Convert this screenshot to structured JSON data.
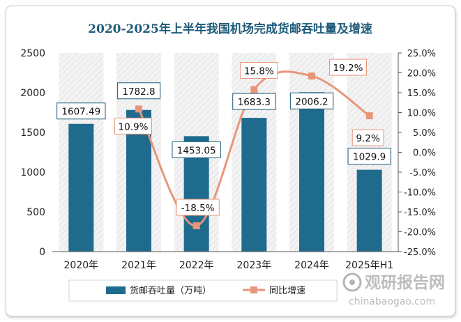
{
  "chart_data": {
    "type": "bar+line",
    "title": "2020-2025年上半年我国机场完成货邮吞吐量及增速",
    "categories": [
      "2020年",
      "2021年",
      "2022年",
      "2023年",
      "2024年",
      "2025年H1"
    ],
    "series": [
      {
        "name": "货邮吞吐量（万吨）",
        "type": "bar",
        "axis": "left",
        "values": [
          1607.49,
          1782.8,
          1453.05,
          1683.3,
          2006.2,
          1029.9
        ],
        "labels": [
          "1607.49",
          "1782.8",
          "1453.05",
          "1683.3",
          "2006.2",
          "1029.9"
        ],
        "color": "#1f6b8e"
      },
      {
        "name": "同比增速",
        "type": "line",
        "axis": "right",
        "values": [
          null,
          10.9,
          -18.5,
          15.8,
          19.2,
          9.2
        ],
        "labels": [
          "",
          "10.9%",
          "-18.5%",
          "15.8%",
          "19.2%",
          "9.2%"
        ],
        "color": "#e8967a"
      }
    ],
    "left_axis": {
      "ylim": [
        0,
        2500
      ],
      "ticks": [
        0,
        500,
        1000,
        1500,
        2000,
        2500
      ],
      "tick_labels": [
        "0",
        "500",
        "1000",
        "1500",
        "2000",
        "2500"
      ]
    },
    "right_axis": {
      "ylim": [
        -25,
        25
      ],
      "ticks": [
        25,
        20,
        15,
        10,
        5,
        0,
        -5,
        -10,
        -15,
        -20,
        -25
      ],
      "tick_labels": [
        "25.0%",
        "20.0%",
        "15.0%",
        "10.0%",
        "5.0%",
        "0.0%",
        "-5.0%",
        "-10.0%",
        "-15.0%",
        "-20.0%",
        "-25.0%"
      ]
    },
    "legend": [
      "货邮吞吐量（万吨）",
      "同比增速"
    ],
    "legend_position": "bottom"
  },
  "watermark": {
    "brand": "观研报告网",
    "url": "chinabaogao.com"
  },
  "colors": {
    "title": "#1f5b7a",
    "bar": "#1f6b8e",
    "line": "#e8967a",
    "label_border_bar": "#1f5b7a",
    "label_border_line": "#e8967a",
    "stripe": "#ebebeb"
  }
}
